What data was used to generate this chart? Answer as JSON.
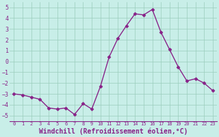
{
  "x": [
    0,
    1,
    2,
    3,
    4,
    5,
    6,
    7,
    8,
    9,
    10,
    11,
    12,
    13,
    14,
    15,
    16,
    17,
    18,
    19,
    20,
    21,
    22,
    23
  ],
  "y": [
    -3.0,
    -3.1,
    -3.3,
    -3.5,
    -4.3,
    -4.4,
    -4.3,
    -4.9,
    -3.9,
    -4.4,
    -2.3,
    0.4,
    2.1,
    3.3,
    4.4,
    4.3,
    4.8,
    2.7,
    1.1,
    -0.5,
    -1.8,
    -1.6,
    -2.0,
    -2.7
  ],
  "line_color": "#882288",
  "marker": "D",
  "markersize": 2.5,
  "linewidth": 1.0,
  "bg_color": "#c8eee8",
  "grid_color": "#99ccbb",
  "xlabel": "Windchill (Refroidissement éolien,°C)",
  "xlabel_fontsize": 7.0,
  "ytick_labels": [
    "5",
    "4",
    "3",
    "2",
    "1",
    "0",
    "-1",
    "-2",
    "-3",
    "-4",
    "-5"
  ],
  "yticks": [
    5,
    4,
    3,
    2,
    1,
    0,
    -1,
    -2,
    -3,
    -4,
    -5
  ],
  "xticks": [
    0,
    1,
    2,
    3,
    4,
    5,
    6,
    7,
    8,
    9,
    10,
    11,
    12,
    13,
    14,
    15,
    16,
    17,
    18,
    19,
    20,
    21,
    22,
    23
  ],
  "ylim": [
    -5.5,
    5.5
  ],
  "xlim": [
    -0.5,
    23.5
  ]
}
